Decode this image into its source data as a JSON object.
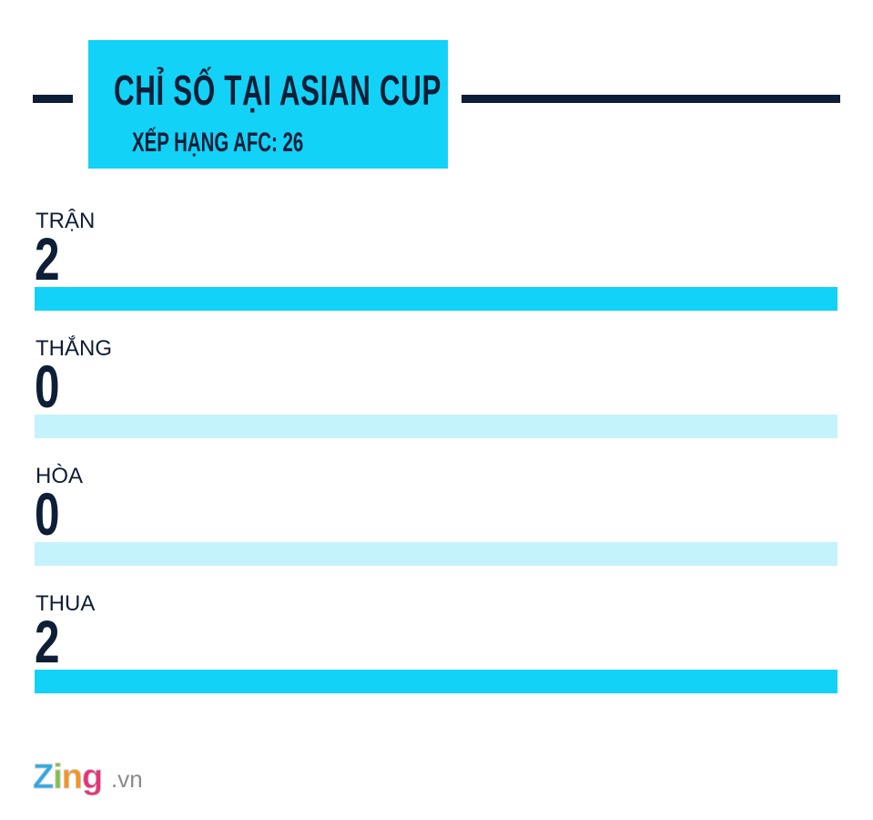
{
  "header": {
    "title": "CHỈ SỐ TẠI ASIAN CUP",
    "subtitle": "XẾP HẠNG AFC: 26"
  },
  "chart_data": {
    "type": "bar",
    "categories": [
      "TRẬN",
      "THẮNG",
      "HÒA",
      "THUA"
    ],
    "values": [
      2,
      0,
      0,
      2
    ],
    "ylim": [
      0,
      2
    ],
    "grid": false,
    "colors": {
      "fill": "#12d2f8",
      "track": "#c5f3fc",
      "text": "#0d1e36"
    }
  },
  "logo": {
    "brand": "Zing",
    "suffix": ".vn"
  }
}
